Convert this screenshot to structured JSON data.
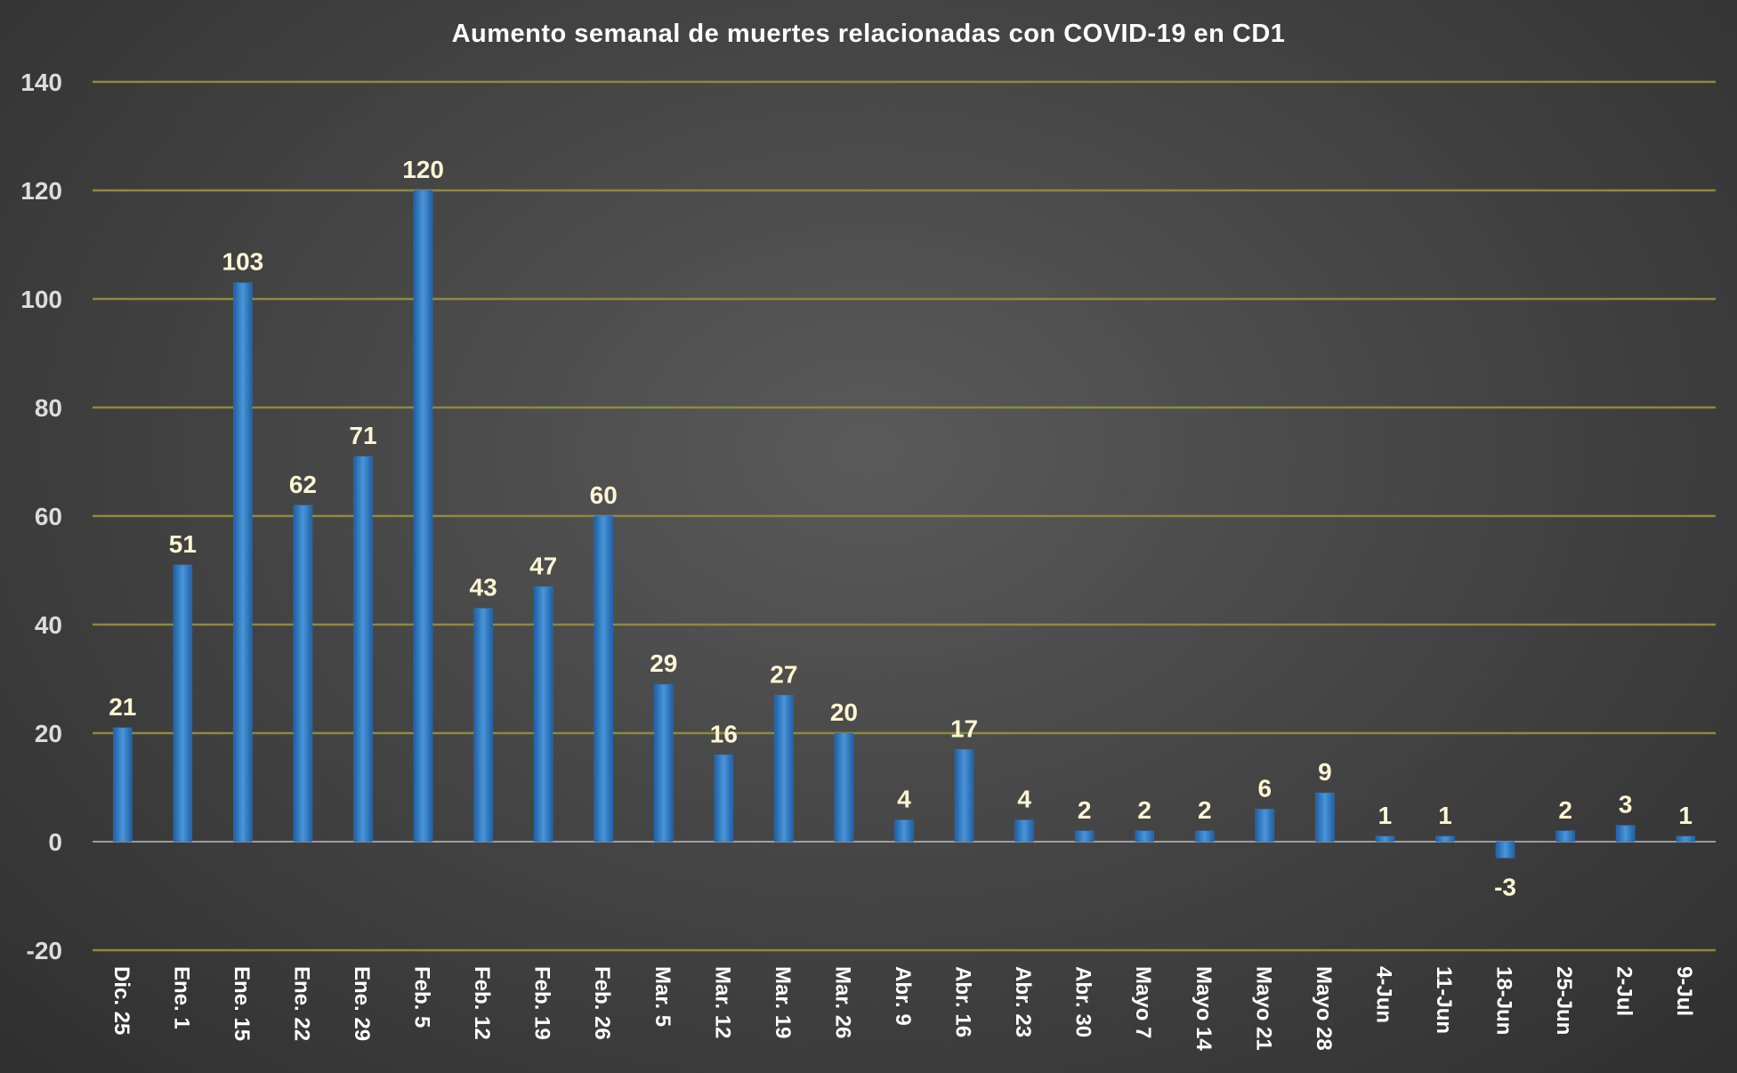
{
  "chart_data": {
    "type": "bar",
    "title": "Aumento semanal de muertes relacionadas con COVID-19 en CD1",
    "xlabel": "",
    "ylabel": "",
    "ylim": [
      -20,
      140
    ],
    "yticks": [
      -20,
      0,
      20,
      40,
      60,
      80,
      100,
      120,
      140
    ],
    "ytick_labels": [
      "-20",
      "0",
      "20",
      "40",
      "60",
      "80",
      "100",
      "120",
      "140"
    ],
    "grid": true,
    "legend": "none",
    "categories": [
      "Dic. 25",
      "Ene. 1",
      "Ene. 15",
      "Ene. 22",
      "Ene. 29",
      "Feb. 5",
      "Feb. 12",
      "Feb. 19",
      "Feb. 26",
      "Mar. 5",
      "Mar. 12",
      "Mar. 19",
      "Mar. 26",
      "Abr. 9",
      "Abr. 16",
      "Abr. 23",
      "Abr. 30",
      "Mayo 7",
      "Mayo 14",
      "Mayo 21",
      "Mayo 28",
      "4-Jun",
      "11-Jun",
      "18-Jun",
      "25-Jun",
      "2-Jul",
      "9-Jul"
    ],
    "values": [
      21,
      51,
      103,
      62,
      71,
      120,
      43,
      47,
      60,
      29,
      16,
      27,
      20,
      4,
      17,
      4,
      2,
      2,
      2,
      6,
      9,
      1,
      1,
      -3,
      2,
      3,
      1
    ],
    "data_labels": [
      "21",
      "51",
      "103",
      "62",
      "71",
      "120",
      "43",
      "47",
      "60",
      "29",
      "16",
      "27",
      "20",
      "4",
      "17",
      "4",
      "2",
      "2",
      "2",
      "6",
      "9",
      "1",
      "1",
      "-3",
      "2",
      "3",
      "1"
    ],
    "colors": {
      "bar": "#2e75c0",
      "bar_highlight": "#4a95da",
      "gridline": "#8e8a3c",
      "zero_line": "#bdbdbd",
      "data_label": "#fdf6d3",
      "title": "#ffffff",
      "tick": "#dcdcdc"
    }
  }
}
